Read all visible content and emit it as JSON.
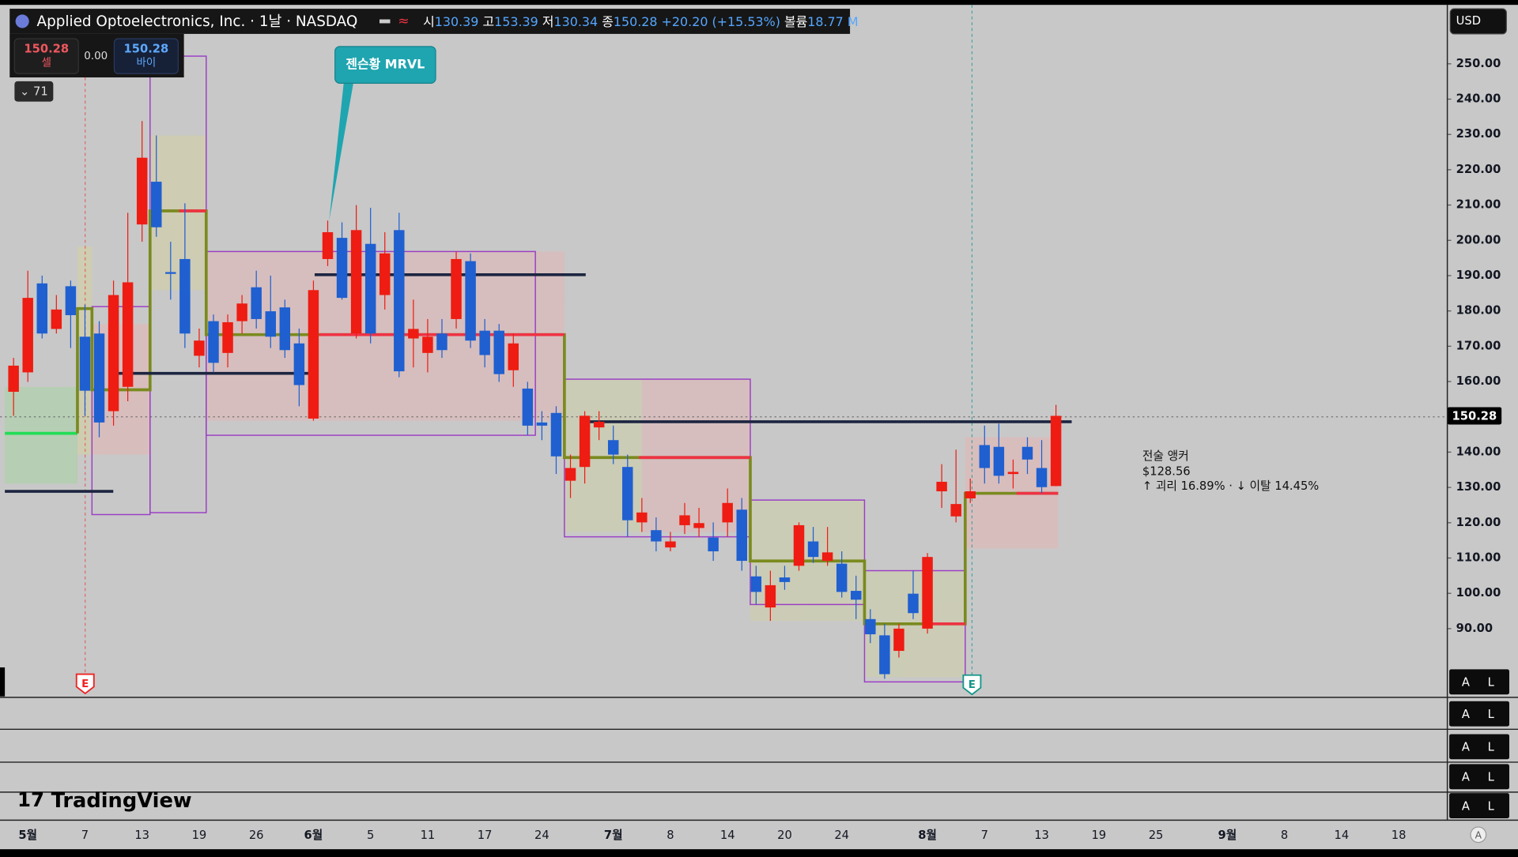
{
  "header": {
    "symbol": "Applied Optoelectronics, Inc. · 1날 · NASDAQ",
    "ohlc": [
      {
        "label": "시",
        "value": "130.39"
      },
      {
        "label": "고",
        "value": "153.39"
      },
      {
        "label": "저",
        "value": "130.34"
      },
      {
        "label": "종",
        "value": "150.28"
      }
    ],
    "change": "+20.20 (+15.53%)",
    "volume_label": "볼륨",
    "volume": "18.77 M"
  },
  "trade": {
    "sell_price": "150.28",
    "sell": "셀",
    "spread": "0.00",
    "buy_price": "150.28",
    "buy": "바이"
  },
  "indicator_count": "71",
  "currency": "USD",
  "callout": "젠슨황 MRVL",
  "anchor": {
    "title": "전술 앵커",
    "price": "$128.56",
    "stats": "↑ 괴리 16.89% · ↓ 이탈 14.45%"
  },
  "earnings_marker": "E",
  "panes": [
    {
      "a": "A",
      "l": "L"
    },
    {
      "a": "A",
      "l": "L"
    },
    {
      "a": "A",
      "l": "L"
    },
    {
      "a": "A",
      "l": "L"
    },
    {
      "a": "A",
      "l": "L"
    }
  ],
  "logo": "TradingView",
  "auto_scale": "A",
  "chart_data": {
    "type": "candlestick",
    "categories": [
      null,
      "5월",
      null,
      null,
      null,
      "7",
      null,
      null,
      null,
      "13",
      null,
      null,
      null,
      "19",
      null,
      null,
      null,
      "26",
      null,
      null,
      null,
      "6월",
      null,
      null,
      null,
      "5",
      null,
      null,
      null,
      "11",
      null,
      null,
      null,
      "17",
      null,
      null,
      null,
      "24",
      null,
      null,
      null,
      null,
      "7월",
      null,
      null,
      null,
      "8",
      null,
      null,
      null,
      "14",
      null,
      null,
      null,
      "20",
      null,
      null,
      null,
      "24",
      null,
      null,
      null,
      null,
      null,
      "8월",
      null,
      null,
      null,
      "7",
      null,
      null,
      null,
      "13",
      null,
      null,
      null,
      "19",
      null,
      null,
      null,
      "25",
      null,
      null,
      null,
      null,
      "9월",
      null,
      null,
      null,
      "8",
      null,
      null,
      null,
      "14",
      null,
      null,
      null,
      "18"
    ],
    "open": [
      157.1,
      162.6,
      187.8,
      174.9,
      187.0,
      172.7,
      173.6,
      151.6,
      158.5,
      204.5,
      216.6,
      191.0,
      194.7,
      167.3,
      177.1,
      168.1,
      177.1,
      186.7,
      179.9,
      181.0,
      170.8,
      149.5,
      194.7,
      200.7,
      173.6,
      199.0,
      184.5,
      202.9,
      172.2,
      168.1,
      173.6,
      177.7,
      194.1,
      174.4,
      174.4,
      163.2,
      158.0,
      148.4,
      151.1,
      131.9,
      135.8,
      147.0,
      143.4,
      135.8,
      120.1,
      117.9,
      113.0,
      119.3,
      118.5,
      115.8,
      120.1,
      123.7,
      104.8,
      96.0,
      104.5,
      107.8,
      114.7,
      109.2,
      108.4,
      100.7,
      92.7,
      88.1,
      83.7,
      99.9,
      90.0,
      128.9,
      121.8,
      126.9,
      142.0,
      141.5,
      133.8,
      141.5,
      135.5,
      130.39,
      null,
      null,
      null,
      null,
      null,
      null,
      null,
      null,
      null,
      null,
      null,
      null,
      null,
      null,
      null,
      null,
      null,
      null,
      null,
      null,
      null,
      null,
      null,
      null
    ],
    "high": [
      166.7,
      191.4,
      190.0,
      184.5,
      188.6,
      181.8,
      177.1,
      188.6,
      207.8,
      233.8,
      229.7,
      199.6,
      210.5,
      175.0,
      179.0,
      179.0,
      184.5,
      191.4,
      190.0,
      183.2,
      175.0,
      188.6,
      205.6,
      205.1,
      210.0,
      209.2,
      202.3,
      207.8,
      183.2,
      177.7,
      177.7,
      196.8,
      196.3,
      177.7,
      176.3,
      173.6,
      159.9,
      151.6,
      153.0,
      139.3,
      151.6,
      151.6,
      147.5,
      139.3,
      127.0,
      121.5,
      117.4,
      125.6,
      124.2,
      120.1,
      129.7,
      127.0,
      107.8,
      106.4,
      107.8,
      120.1,
      118.8,
      118.8,
      111.9,
      105.0,
      95.5,
      91.4,
      91.4,
      106.4,
      111.4,
      136.6,
      140.7,
      132.5,
      147.5,
      148.1,
      137.9,
      144.2,
      143.4,
      153.39,
      null,
      null,
      null,
      null,
      null,
      null,
      null,
      null,
      null,
      null,
      null,
      null,
      null,
      null,
      null,
      null,
      null,
      null,
      null,
      null,
      null,
      null,
      null,
      null
    ],
    "low": [
      150.3,
      159.9,
      172.2,
      173.6,
      169.5,
      150.3,
      144.2,
      147.5,
      154.4,
      199.6,
      201.0,
      183.2,
      169.5,
      164.0,
      162.6,
      164.0,
      173.6,
      175.0,
      169.5,
      166.7,
      153.0,
      148.9,
      192.7,
      183.2,
      172.2,
      170.8,
      180.4,
      161.2,
      164.0,
      162.6,
      166.7,
      175.0,
      169.5,
      164.0,
      159.9,
      158.5,
      144.8,
      143.4,
      133.8,
      127.0,
      131.1,
      143.4,
      136.6,
      116.0,
      117.4,
      111.9,
      111.9,
      116.8,
      116.0,
      109.2,
      116.0,
      106.4,
      96.8,
      92.2,
      101.0,
      106.4,
      108.6,
      107.8,
      98.8,
      92.7,
      85.9,
      75.8,
      81.8,
      92.7,
      88.6,
      124.2,
      120.1,
      125.6,
      131.1,
      131.1,
      129.7,
      133.8,
      128.4,
      130.34,
      null,
      null,
      null,
      null,
      null,
      null,
      null,
      null,
      null,
      null,
      null,
      null,
      null,
      null,
      null,
      null,
      null,
      null,
      null,
      null,
      null,
      null,
      null,
      null
    ],
    "close": [
      164.5,
      183.7,
      173.6,
      180.4,
      178.8,
      157.4,
      148.4,
      184.5,
      188.1,
      223.4,
      203.7,
      190.5,
      173.6,
      171.6,
      165.3,
      176.8,
      182.1,
      177.7,
      172.7,
      168.9,
      159.0,
      185.9,
      202.3,
      183.7,
      202.9,
      173.6,
      196.3,
      162.9,
      174.9,
      172.7,
      168.9,
      194.7,
      171.6,
      167.5,
      162.1,
      170.8,
      147.5,
      147.5,
      138.8,
      135.5,
      150.3,
      148.6,
      139.3,
      120.7,
      122.9,
      114.7,
      114.7,
      122.1,
      119.9,
      111.9,
      125.6,
      109.2,
      100.4,
      102.3,
      103.2,
      119.3,
      110.3,
      111.6,
      100.4,
      98.2,
      88.4,
      77.1,
      90.0,
      94.4,
      110.3,
      131.6,
      125.3,
      128.9,
      135.5,
      133.3,
      134.4,
      137.9,
      130.08,
      150.28,
      null,
      null,
      null,
      null,
      null,
      null,
      null,
      null,
      null,
      null,
      null,
      null,
      null,
      null,
      null,
      null,
      null,
      null,
      null,
      null,
      null,
      null,
      null,
      null
    ],
    "up_color": "#ee1c12",
    "down_color": "#1f5fd0",
    "ylim": [
      70.8,
      266.7
    ],
    "yticks": [
      {
        "value": 90,
        "label": "90.00"
      },
      {
        "value": 100,
        "label": "100.00"
      },
      {
        "value": 110,
        "label": "110.00"
      },
      {
        "value": 120,
        "label": "120.00"
      },
      {
        "value": 130,
        "label": "130.00"
      },
      {
        "value": 140,
        "label": "140.00"
      },
      {
        "value": 150,
        "label": "150.00"
      },
      {
        "value": 160,
        "label": "160.00"
      },
      {
        "value": 170,
        "label": "170.00"
      },
      {
        "value": 180,
        "label": "180.00"
      },
      {
        "value": 190,
        "label": "190.00"
      },
      {
        "value": 200,
        "label": "200.00"
      },
      {
        "value": 210,
        "label": "210.00"
      },
      {
        "value": 220,
        "label": "220.00"
      },
      {
        "value": 230,
        "label": "230.00"
      },
      {
        "value": 240,
        "label": "240.00"
      },
      {
        "value": 250,
        "label": "250.00"
      }
    ],
    "last_price": 150.28,
    "grid": false
  }
}
